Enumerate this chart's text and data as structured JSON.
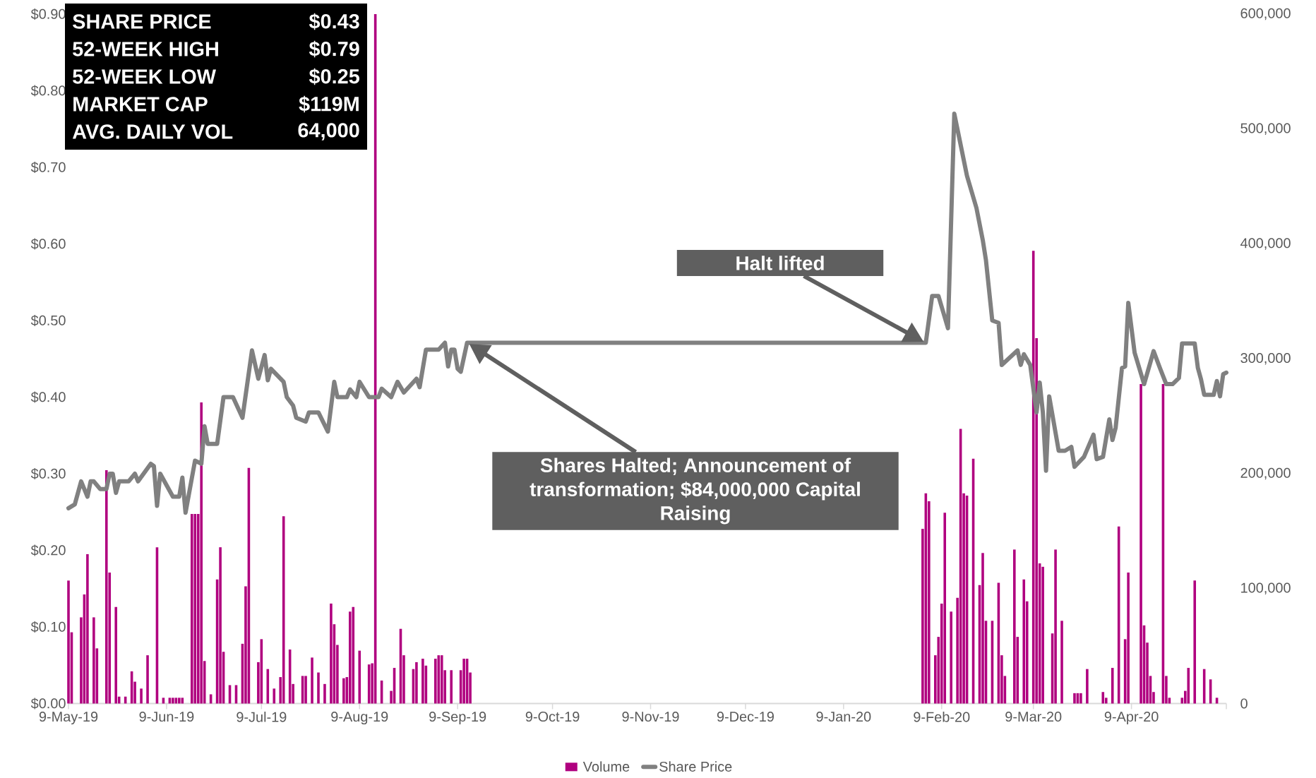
{
  "chart_data": {
    "type": "line",
    "xlim": [
      "2019-05-09",
      "2020-05-09"
    ],
    "xticks": [
      {
        "value": "2019-05-09",
        "label": "9-May-19"
      },
      {
        "value": "2019-06-09",
        "label": "9-Jun-19"
      },
      {
        "value": "2019-07-09",
        "label": "9-Jul-19"
      },
      {
        "value": "2019-08-09",
        "label": "9-Aug-19"
      },
      {
        "value": "2019-09-09",
        "label": "9-Sep-19"
      },
      {
        "value": "2019-10-09",
        "label": "9-Oct-19"
      },
      {
        "value": "2019-11-09",
        "label": "9-Nov-19"
      },
      {
        "value": "2019-12-09",
        "label": "9-Dec-19"
      },
      {
        "value": "2020-01-09",
        "label": "9-Jan-20"
      },
      {
        "value": "2020-02-09",
        "label": "9-Feb-20"
      },
      {
        "value": "2020-03-09",
        "label": "9-Mar-20"
      },
      {
        "value": "2020-04-09",
        "label": "9-Apr-20"
      },
      {
        "value": "2020-05-09",
        "label": null
      }
    ],
    "ylim": [
      0,
      0.9
    ],
    "yticks": [
      {
        "value": 0,
        "label": "$0.00"
      },
      {
        "value": 0.1,
        "label": "$0.10"
      },
      {
        "value": 0.2,
        "label": "$0.20"
      },
      {
        "value": 0.3,
        "label": "$0.30"
      },
      {
        "value": 0.4,
        "label": "$0.40"
      },
      {
        "value": 0.5,
        "label": "$0.50"
      },
      {
        "value": 0.6,
        "label": "$0.60"
      },
      {
        "value": 0.7,
        "label": "$0.70"
      },
      {
        "value": 0.8,
        "label": "$0.80"
      },
      {
        "value": 0.9,
        "label": "$0.90"
      }
    ],
    "y2lim": [
      0,
      600000
    ],
    "y2ticks": [
      0,
      {
        "value": 100000,
        "label": "100,000"
      },
      {
        "value": 200000,
        "label": "200,000"
      },
      {
        "value": 300000,
        "label": "300,000"
      },
      {
        "value": 400000,
        "label": "400,000"
      },
      {
        "value": 500000,
        "label": "500,000"
      },
      {
        "value": 600000,
        "label": "600,000"
      }
    ],
    "legend": "bottom",
    "series": [
      {
        "name": "Volume",
        "type": "bar",
        "axis": "y2",
        "color": "#b0007f",
        "x": [
          "2019-05-09",
          "2019-05-10",
          "2019-05-13",
          "2019-05-14",
          "2019-05-15",
          "2019-05-17",
          "2019-05-18",
          "2019-05-21",
          "2019-05-22",
          "2019-05-24",
          "2019-05-25",
          "2019-05-27",
          "2019-05-29",
          "2019-05-30",
          "2019-06-01",
          "2019-06-03",
          "2019-06-06",
          "2019-06-08",
          "2019-06-10",
          "2019-06-11",
          "2019-06-12",
          "2019-06-13",
          "2019-06-14",
          "2019-06-17",
          "2019-06-18",
          "2019-06-19",
          "2019-06-20",
          "2019-06-21",
          "2019-06-23",
          "2019-06-25",
          "2019-06-26",
          "2019-06-27",
          "2019-06-29",
          "2019-07-01",
          "2019-07-03",
          "2019-07-04",
          "2019-07-05",
          "2019-07-08",
          "2019-07-09",
          "2019-07-11",
          "2019-07-13",
          "2019-07-15",
          "2019-07-16",
          "2019-07-18",
          "2019-07-19",
          "2019-07-22",
          "2019-07-23",
          "2019-07-25",
          "2019-07-27",
          "2019-07-29",
          "2019-07-31",
          "2019-08-01",
          "2019-08-02",
          "2019-08-04",
          "2019-08-05",
          "2019-08-06",
          "2019-08-07",
          "2019-08-09",
          "2019-08-12",
          "2019-08-13",
          "2019-08-14",
          "2019-08-16",
          "2019-08-19",
          "2019-08-20",
          "2019-08-22",
          "2019-08-23",
          "2019-08-26",
          "2019-08-27",
          "2019-08-29",
          "2019-08-30",
          "2019-09-02",
          "2019-09-03",
          "2019-09-04",
          "2019-09-05",
          "2019-09-07",
          "2019-09-10",
          "2019-09-11",
          "2019-09-12",
          "2019-09-13",
          "2020-02-03",
          "2020-02-04",
          "2020-02-05",
          "2020-02-07",
          "2020-02-08",
          "2020-02-09",
          "2020-02-10",
          "2020-02-12",
          "2020-02-14",
          "2020-02-15",
          "2020-02-16",
          "2020-02-17",
          "2020-02-19",
          "2020-02-21",
          "2020-02-22",
          "2020-02-23",
          "2020-02-25",
          "2020-02-27",
          "2020-02-28",
          "2020-02-29",
          "2020-03-03",
          "2020-03-04",
          "2020-03-06",
          "2020-03-07",
          "2020-03-09",
          "2020-03-10",
          "2020-03-11",
          "2020-03-12",
          "2020-03-15",
          "2020-03-16",
          "2020-03-18",
          "2020-03-22",
          "2020-03-23",
          "2020-03-24",
          "2020-03-26",
          "2020-03-31",
          "2020-04-01",
          "2020-04-03",
          "2020-04-05",
          "2020-04-07",
          "2020-04-08",
          "2020-04-12",
          "2020-04-13",
          "2020-04-14",
          "2020-04-15",
          "2020-04-16",
          "2020-04-19",
          "2020-04-20",
          "2020-04-21",
          "2020-04-25",
          "2020-04-26",
          "2020-04-27",
          "2020-04-29",
          "2020-05-02",
          "2020-05-04",
          "2020-05-06"
        ],
        "values": [
          107000,
          62000,
          75000,
          95000,
          130000,
          75000,
          48000,
          203000,
          114000,
          84000,
          6000,
          6000,
          28000,
          19000,
          13000,
          42000,
          136000,
          5000,
          5000,
          5000,
          5000,
          5000,
          5000,
          165000,
          165000,
          165000,
          262000,
          37000,
          8000,
          108000,
          136000,
          45000,
          16000,
          16000,
          52000,
          102000,
          205000,
          36000,
          56000,
          30000,
          13000,
          23000,
          163000,
          47000,
          17000,
          24000,
          24000,
          40000,
          27000,
          17000,
          87000,
          69000,
          51000,
          22000,
          23000,
          80000,
          84000,
          46000,
          34000,
          35000,
          600000,
          20000,
          11000,
          31000,
          65000,
          42000,
          30000,
          36000,
          39000,
          33000,
          39000,
          42000,
          42000,
          29000,
          29000,
          29000,
          39000,
          39000,
          27000,
          152000,
          183000,
          176000,
          42000,
          58000,
          87000,
          166000,
          80000,
          92000,
          239000,
          183000,
          181000,
          213000,
          103000,
          131000,
          72000,
          72000,
          105000,
          42000,
          24000,
          134000,
          58000,
          108000,
          89000,
          394000,
          318000,
          122000,
          119000,
          61000,
          134000,
          72000,
          9000,
          9000,
          9000,
          30000,
          10000,
          5000,
          31000,
          154000,
          56000,
          114000,
          278000,
          68000,
          53000,
          24000,
          10000,
          278000,
          24000,
          5000,
          5000,
          11000,
          31000,
          107000,
          30000,
          21000,
          5000
        ]
      },
      {
        "name": "Share Price",
        "color": "#808080",
        "x": [
          "2019-05-09",
          "2019-05-11",
          "2019-05-13",
          "2019-05-15",
          "2019-05-16",
          "2019-05-17",
          "2019-05-19",
          "2019-05-21",
          "2019-05-22",
          "2019-05-23",
          "2019-05-24",
          "2019-05-25",
          "2019-05-28",
          "2019-05-30",
          "2019-05-31",
          "2019-06-04",
          "2019-06-05",
          "2019-06-06",
          "2019-06-07",
          "2019-06-11",
          "2019-06-13",
          "2019-06-14",
          "2019-06-15",
          "2019-06-18",
          "2019-06-20",
          "2019-06-21",
          "2019-06-22",
          "2019-06-25",
          "2019-06-27",
          "2019-06-30",
          "2019-07-03",
          "2019-07-06",
          "2019-07-08",
          "2019-07-10",
          "2019-07-11",
          "2019-07-12",
          "2019-07-16",
          "2019-07-17",
          "2019-07-19",
          "2019-07-20",
          "2019-07-23",
          "2019-07-24",
          "2019-07-27",
          "2019-07-30",
          "2019-08-01",
          "2019-08-02",
          "2019-08-05",
          "2019-08-06",
          "2019-08-08",
          "2019-08-09",
          "2019-08-12",
          "2019-08-15",
          "2019-08-16",
          "2019-08-19",
          "2019-08-21",
          "2019-08-23",
          "2019-08-27",
          "2019-08-28",
          "2019-08-30",
          "2019-09-03",
          "2019-09-05",
          "2019-09-06",
          "2019-09-07",
          "2019-09-08",
          "2019-09-09",
          "2019-09-10",
          "2019-09-12",
          "2020-02-04",
          "2020-02-06",
          "2020-02-08",
          "2020-02-11",
          "2020-02-13",
          "2020-02-17",
          "2020-02-20",
          "2020-02-22",
          "2020-02-23",
          "2020-02-25",
          "2020-02-27",
          "2020-02-28",
          "2020-03-04",
          "2020-03-05",
          "2020-03-06",
          "2020-03-08",
          "2020-03-10",
          "2020-03-11",
          "2020-03-12",
          "2020-03-13",
          "2020-03-14",
          "2020-03-17",
          "2020-03-19",
          "2020-03-21",
          "2020-03-22",
          "2020-03-25",
          "2020-03-28",
          "2020-03-29",
          "2020-03-31",
          "2020-04-02",
          "2020-04-03",
          "2020-04-04",
          "2020-04-06",
          "2020-04-07",
          "2020-04-08",
          "2020-04-10",
          "2020-04-13",
          "2020-04-16",
          "2020-04-18",
          "2020-04-20",
          "2020-04-22",
          "2020-04-24",
          "2020-04-25",
          "2020-04-29",
          "2020-04-30",
          "2020-05-01",
          "2020-05-02",
          "2020-05-05",
          "2020-05-06",
          "2020-05-07",
          "2020-05-08",
          "2020-05-09"
        ],
        "values": [
          0.255,
          0.26,
          0.29,
          0.27,
          0.29,
          0.29,
          0.28,
          0.28,
          0.3,
          0.3,
          0.275,
          0.29,
          0.29,
          0.3,
          0.29,
          0.313,
          0.31,
          0.258,
          0.3,
          0.27,
          0.27,
          0.295,
          0.249,
          0.317,
          0.313,
          0.362,
          0.339,
          0.339,
          0.4,
          0.4,
          0.373,
          0.461,
          0.424,
          0.455,
          0.422,
          0.437,
          0.42,
          0.4,
          0.389,
          0.373,
          0.368,
          0.38,
          0.38,
          0.355,
          0.42,
          0.4,
          0.4,
          0.41,
          0.4,
          0.42,
          0.4,
          0.4,
          0.411,
          0.4,
          0.42,
          0.406,
          0.424,
          0.413,
          0.462,
          0.462,
          0.471,
          0.44,
          0.462,
          0.462,
          0.437,
          0.433,
          0.471,
          0.471,
          0.532,
          0.532,
          0.49,
          0.77,
          0.689,
          0.647,
          0.605,
          0.579,
          0.5,
          0.497,
          0.442,
          0.461,
          0.442,
          0.456,
          0.442,
          0.38,
          0.419,
          0.38,
          0.304,
          0.401,
          0.33,
          0.33,
          0.335,
          0.309,
          0.322,
          0.351,
          0.319,
          0.322,
          0.371,
          0.344,
          0.36,
          0.438,
          0.44,
          0.523,
          0.458,
          0.417,
          0.46,
          0.438,
          0.417,
          0.417,
          0.425,
          0.47,
          0.47,
          0.438,
          0.423,
          0.403,
          0.403,
          0.421,
          0.401,
          0.43,
          0.432
        ]
      }
    ],
    "annotations": [
      "SHARE PRICE",
      "$0.43",
      "52-WEEK HIGH",
      "$0.79",
      "52-WEEK LOW",
      "$0.25",
      "MARKET CAP",
      "$119M",
      "AVG. DAILY VOL",
      "64,000",
      "Shares Halted; Announcement of transformation; $84,000,000 Capital Raising",
      "Halt lifted"
    ]
  }
}
